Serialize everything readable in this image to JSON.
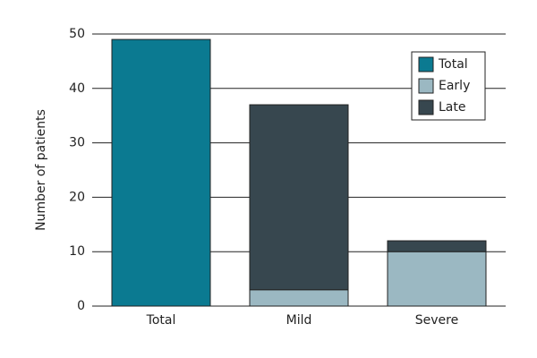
{
  "chart_data": {
    "type": "stacked-bar",
    "y_label": "Number of patients",
    "categories": [
      "Total",
      "Mild",
      "Severe"
    ],
    "series": [
      {
        "name": "Total",
        "color": "#0b7a91",
        "values": [
          49,
          null,
          null
        ]
      },
      {
        "name": "Early",
        "color": "#9bb8c2",
        "values": [
          null,
          3,
          10
        ]
      },
      {
        "name": "Late",
        "color": "#37474f",
        "values": [
          null,
          34,
          2
        ]
      }
    ],
    "ylim": [
      0,
      50
    ],
    "yticks": [
      0,
      10,
      20,
      30,
      40,
      50
    ],
    "grid": true,
    "legend": "upper right"
  }
}
